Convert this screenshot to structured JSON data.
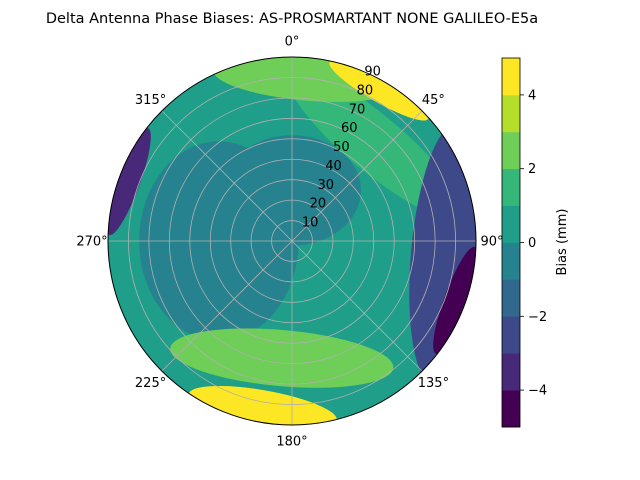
{
  "chart_data": {
    "type": "heatmap",
    "projection": "polar",
    "title": "Delta Antenna Phase Biases: AS-PROSMARTANT  NONE GALILEO-E5a",
    "angular_axis": {
      "zero_location": "north",
      "direction": "clockwise",
      "tick_labels": [
        "0°",
        "45°",
        "90°",
        "135°",
        "180°",
        "225°",
        "270°",
        "315°"
      ]
    },
    "radial_axis": {
      "ticks": [
        10,
        20,
        30,
        40,
        50,
        60,
        70,
        80,
        90
      ],
      "tick_labels": [
        "10",
        "20",
        "30",
        "40",
        "50",
        "60",
        "70",
        "80",
        "90"
      ],
      "range": [
        0,
        90
      ]
    },
    "grid": true,
    "colormap": "viridis",
    "colorbar": {
      "label": "Bias (mm)",
      "range": [
        -5,
        5
      ],
      "level_step": 1,
      "ticks": [
        -4,
        -2,
        0,
        2,
        4
      ],
      "tick_labels": [
        "−4",
        "−2",
        "0",
        "2",
        "4"
      ],
      "colors": [
        "#440154",
        "#482878",
        "#3e4989",
        "#31688e",
        "#26828e",
        "#1f9e89",
        "#35b779",
        "#6ece58",
        "#b5de2b",
        "#fde725"
      ]
    },
    "region_bias_mm": [
      {
        "level": 0.5,
        "angle_deg": 0,
        "r_range": [
          0,
          90
        ]
      },
      {
        "level": -0.5,
        "angle_deg": 0,
        "r_range": [
          0,
          45
        ]
      },
      {
        "level": -0.5,
        "angle_deg": 270,
        "r_range": [
          0,
          65
        ]
      },
      {
        "level": 1.5,
        "angle_deg": 40,
        "r_range": [
          50,
          75
        ]
      },
      {
        "level": 2.5,
        "angle_deg": 5,
        "r_range": [
          70,
          90
        ]
      },
      {
        "level": 4.5,
        "angle_deg": 30,
        "r_range": [
          80,
          90
        ]
      },
      {
        "level": -2.5,
        "angle_deg": 95,
        "r_range": [
          60,
          90
        ]
      },
      {
        "level": -4.5,
        "angle_deg": 110,
        "r_range": [
          80,
          90
        ]
      },
      {
        "level": -3.5,
        "angle_deg": 290,
        "r_range": [
          80,
          90
        ]
      },
      {
        "level": 2.5,
        "angle_deg": 185,
        "r_range": [
          45,
          70
        ]
      },
      {
        "level": 4.5,
        "angle_deg": 190,
        "r_range": [
          75,
          90
        ]
      }
    ]
  }
}
